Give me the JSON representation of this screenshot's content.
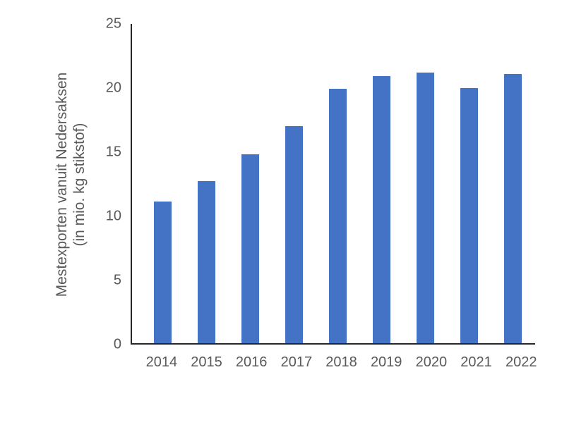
{
  "chart_data": {
    "type": "bar",
    "title": "",
    "categories": [
      "2014",
      "2015",
      "2016",
      "2017",
      "2018",
      "2019",
      "2020",
      "2021",
      "2022"
    ],
    "values": [
      11.1,
      12.7,
      14.8,
      17.0,
      19.9,
      20.9,
      21.2,
      20.0,
      21.1
    ],
    "xlabel": "",
    "ylabel_line1": "Mestexporten vanuit Nedersaksen",
    "ylabel_line2": "(in mio. kg stikstof)",
    "ylim": [
      0,
      25
    ],
    "yticks": [
      0,
      5,
      10,
      15,
      20,
      25
    ],
    "grid": false,
    "legend": "none",
    "colors": {
      "bar": "#4472C4",
      "axis_line": "#262626",
      "text": "#595959",
      "background": "#FFFFFF"
    }
  }
}
